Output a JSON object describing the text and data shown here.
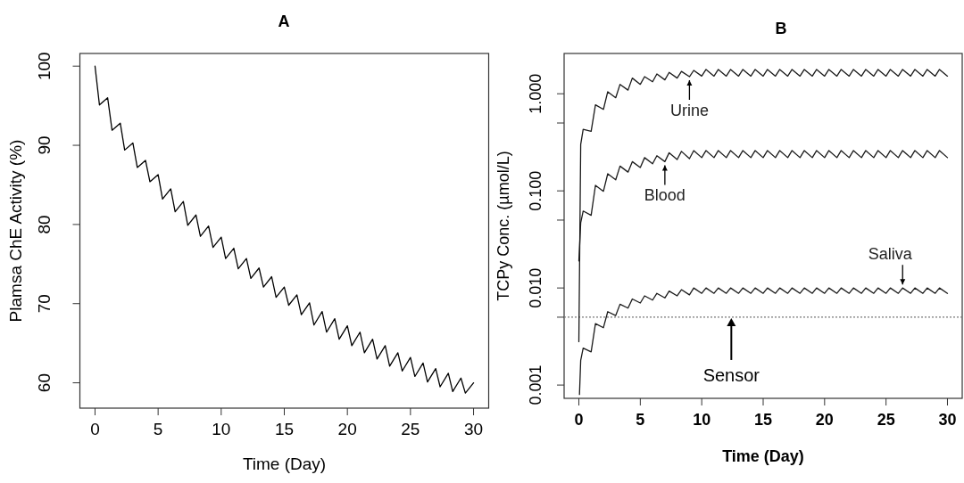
{
  "chart_data": [
    {
      "type": "line",
      "title": "A",
      "xlabel": "Time (Day)",
      "ylabel": "Plamsa ChE Activity (%)",
      "xlim": [
        -1.2,
        31.2
      ],
      "ylim": [
        56.8,
        101.6
      ],
      "xticks": [
        0,
        5,
        10,
        15,
        20,
        25,
        30
      ],
      "yticks": [
        60,
        70,
        80,
        90,
        100
      ],
      "grid": false,
      "line_style": "solid",
      "series": [
        {
          "color": "#000000",
          "x": [
            0,
            0.35,
            1,
            1.35,
            2,
            2.35,
            3,
            3.35,
            4,
            4.35,
            5,
            5.35,
            6,
            6.35,
            7,
            7.35,
            8,
            8.35,
            9,
            9.35,
            10,
            10.35,
            11,
            11.35,
            12,
            12.35,
            13,
            13.35,
            14,
            14.35,
            15,
            15.35,
            16,
            16.35,
            17,
            17.35,
            18,
            18.35,
            19,
            19.35,
            20,
            20.35,
            21,
            21.35,
            22,
            22.35,
            23,
            23.35,
            24,
            24.35,
            25,
            25.35,
            26,
            26.35,
            27,
            27.35,
            28,
            28.35,
            29,
            29.35,
            30
          ],
          "values": [
            100,
            95.1,
            96.0,
            91.9,
            92.8,
            89.4,
            90.3,
            87.2,
            88.1,
            85.4,
            86.3,
            83.2,
            84.5,
            81.6,
            82.9,
            79.9,
            81.2,
            78.5,
            79.8,
            77.1,
            78.4,
            75.7,
            77.0,
            74.4,
            75.7,
            73.2,
            74.5,
            72.1,
            73.4,
            70.8,
            72.1,
            69.8,
            71.1,
            68.6,
            70.1,
            67.3,
            69.0,
            66.4,
            68.1,
            65.5,
            67.2,
            64.7,
            66.4,
            63.8,
            65.5,
            63.0,
            64.7,
            62.1,
            63.8,
            61.5,
            63.2,
            60.8,
            62.5,
            60.1,
            61.8,
            59.5,
            61.2,
            58.9,
            60.6,
            58.7,
            60.0
          ]
        }
      ]
    },
    {
      "type": "line",
      "title": "B",
      "xlabel": "Time (Day)",
      "ylabel": "TCPy Conc. (µmol/L)",
      "log": "y",
      "xlim": [
        -1.2,
        31.2
      ],
      "ylim": [
        0.00073,
        2.6
      ],
      "xticks": [
        0,
        5,
        10,
        15,
        20,
        25,
        30
      ],
      "yticks": [
        {
          "value": 0.001,
          "label": "0.001"
        },
        {
          "value": 0.005,
          "label": null
        },
        {
          "value": 0.01,
          "label": "0.010"
        },
        {
          "value": 0.05,
          "label": null
        },
        {
          "value": 0.1,
          "label": "0.100"
        },
        {
          "value": 0.5,
          "label": null
        },
        {
          "value": 1,
          "label": "1.000"
        }
      ],
      "grid": false,
      "line_style": "solid",
      "series": [
        {
          "color": "#1a1a1a",
          "x": [
            0,
            0.15,
            0.35,
            1,
            1.35,
            2,
            2.35,
            3,
            3.35,
            4,
            4.35,
            5,
            5.35,
            6,
            6.35,
            7,
            7.35,
            8,
            8.35,
            9,
            9.35,
            10,
            10.35,
            11,
            11.35,
            12,
            12.35,
            13,
            13.35,
            14,
            14.35,
            15,
            15.35,
            16,
            16.35,
            17,
            17.35,
            18,
            18.35,
            19,
            19.35,
            20,
            20.35,
            21,
            21.35,
            22,
            22.35,
            23,
            23.35,
            24,
            24.35,
            25,
            25.35,
            26,
            26.35,
            27,
            27.35,
            28,
            28.35,
            29,
            29.35,
            30
          ],
          "values": [
            0.0028,
            0.3,
            0.43,
            0.41,
            0.77,
            0.69,
            1.05,
            0.91,
            1.25,
            1.09,
            1.45,
            1.25,
            1.5,
            1.33,
            1.6,
            1.39,
            1.66,
            1.45,
            1.7,
            1.5,
            1.74,
            1.52,
            1.78,
            1.52,
            1.78,
            1.52,
            1.78,
            1.52,
            1.78,
            1.52,
            1.78,
            1.52,
            1.78,
            1.52,
            1.78,
            1.52,
            1.78,
            1.52,
            1.78,
            1.52,
            1.78,
            1.52,
            1.78,
            1.52,
            1.78,
            1.52,
            1.78,
            1.52,
            1.78,
            1.52,
            1.78,
            1.52,
            1.78,
            1.52,
            1.78,
            1.52,
            1.78,
            1.52,
            1.78,
            1.52,
            1.78,
            1.52
          ]
        },
        {
          "color": "#1a1a1a",
          "x": [
            0,
            0.15,
            0.35,
            1,
            1.35,
            2,
            2.35,
            3,
            3.35,
            4,
            4.35,
            5,
            5.35,
            6,
            6.35,
            7,
            7.35,
            8,
            8.35,
            9,
            9.35,
            10,
            10.35,
            11,
            11.35,
            12,
            12.35,
            13,
            13.35,
            14,
            14.35,
            15,
            15.35,
            16,
            16.35,
            17,
            17.35,
            18,
            18.35,
            19,
            19.35,
            20,
            20.35,
            21,
            21.35,
            22,
            22.35,
            23,
            23.35,
            24,
            24.35,
            25,
            25.35,
            26,
            26.35,
            27,
            27.35,
            28,
            28.35,
            29,
            29.35,
            30
          ],
          "values": [
            0.019,
            0.047,
            0.062,
            0.056,
            0.114,
            0.099,
            0.15,
            0.13,
            0.18,
            0.156,
            0.2,
            0.174,
            0.22,
            0.19,
            0.23,
            0.2,
            0.247,
            0.21,
            0.255,
            0.215,
            0.26,
            0.22,
            0.26,
            0.22,
            0.26,
            0.22,
            0.26,
            0.22,
            0.26,
            0.22,
            0.26,
            0.22,
            0.26,
            0.22,
            0.26,
            0.22,
            0.26,
            0.22,
            0.26,
            0.22,
            0.26,
            0.22,
            0.26,
            0.22,
            0.26,
            0.22,
            0.26,
            0.22,
            0.26,
            0.22,
            0.26,
            0.22,
            0.26,
            0.22,
            0.26,
            0.22,
            0.26,
            0.22,
            0.26,
            0.22,
            0.26,
            0.22
          ]
        },
        {
          "color": "#1a1a1a",
          "x": [
            0.05,
            0.15,
            0.35,
            1,
            1.35,
            2,
            2.35,
            3,
            3.35,
            4,
            4.35,
            5,
            5.35,
            6,
            6.35,
            7,
            7.35,
            8,
            8.35,
            9,
            9.35,
            10,
            10.35,
            11,
            11.35,
            12,
            12.35,
            13,
            13.35,
            14,
            14.35,
            15,
            15.35,
            16,
            16.35,
            17,
            17.35,
            18,
            18.35,
            19,
            19.35,
            20,
            20.35,
            21,
            21.35,
            22,
            22.35,
            23,
            23.35,
            24,
            24.35,
            25,
            25.35,
            26,
            26.35,
            27,
            27.35,
            28,
            28.35,
            29,
            29.35,
            30
          ],
          "values": [
            0.0008,
            0.0018,
            0.0024,
            0.0022,
            0.0043,
            0.0039,
            0.0057,
            0.0052,
            0.0068,
            0.0062,
            0.0077,
            0.007,
            0.0083,
            0.0075,
            0.0088,
            0.0079,
            0.0093,
            0.0083,
            0.0096,
            0.0085,
            0.01,
            0.0088,
            0.01,
            0.0088,
            0.01,
            0.0088,
            0.01,
            0.0088,
            0.01,
            0.0088,
            0.01,
            0.0088,
            0.01,
            0.0088,
            0.01,
            0.0088,
            0.01,
            0.0088,
            0.01,
            0.0088,
            0.01,
            0.0088,
            0.01,
            0.0088,
            0.01,
            0.0088,
            0.01,
            0.0088,
            0.01,
            0.0088,
            0.01,
            0.0088,
            0.01,
            0.0088,
            0.01,
            0.0088,
            0.01,
            0.0088,
            0.01,
            0.0088,
            0.01,
            0.0088
          ]
        }
      ],
      "ref_lines": [
        {
          "axis": "y",
          "value": 0.005,
          "label": "Sensor",
          "color": "#777777",
          "line_style": "dotted"
        }
      ],
      "annotations": [
        {
          "text": "Urine",
          "x": 9,
          "y": 1.5
        },
        {
          "text": "Blood",
          "x": 7,
          "y": 0.2
        },
        {
          "text": "Saliva",
          "x": 26.35,
          "y": 0.01
        }
      ]
    }
  ]
}
